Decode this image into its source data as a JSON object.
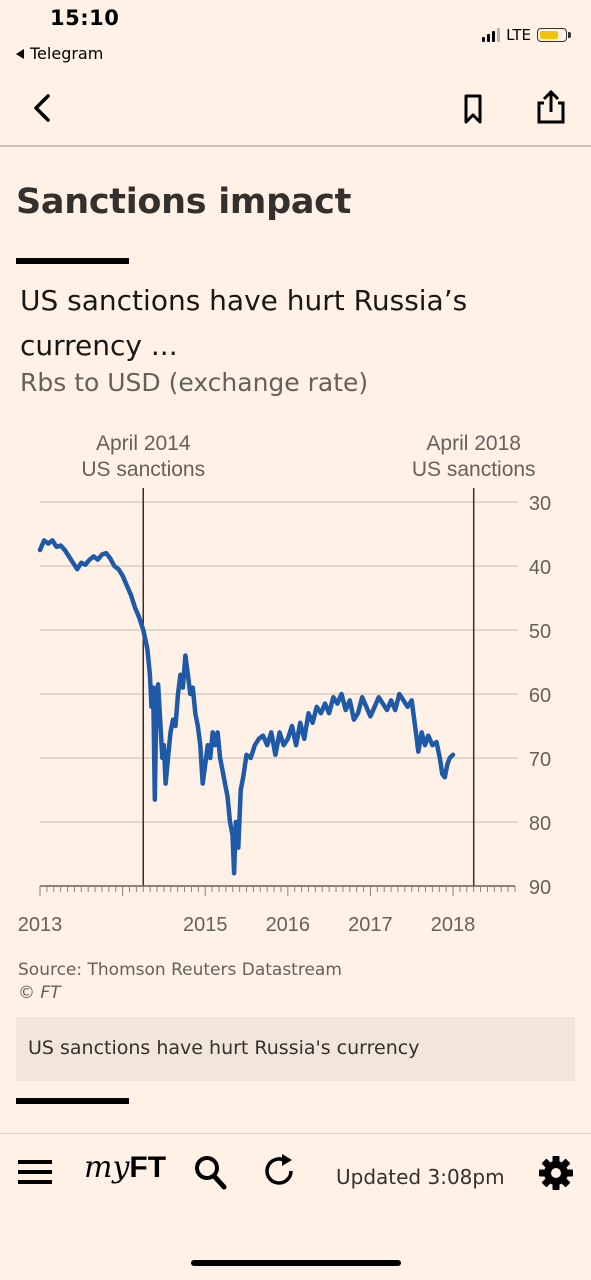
{
  "status_bar": {
    "time": "15:10",
    "back_app": "Telegram",
    "network": "LTE",
    "battery_color": "#f4c20d"
  },
  "nav": {
    "back_icon": "chevron-left-icon",
    "bookmark_icon": "bookmark-icon",
    "share_icon": "share-icon"
  },
  "article": {
    "heading": "Sanctions impact",
    "chart_title": "US sanctions have hurt Russia’s currency  ...",
    "chart_subtitle": "Rbs to USD (exchange rate)",
    "source": "Source: Thomson Reuters Datastream",
    "copyright": "© FT",
    "caption": "US sanctions have hurt Russia's currency"
  },
  "chart_data": {
    "type": "line",
    "title": "US sanctions have hurt Russia’s currency  ...",
    "subtitle": "Rbs to USD (exchange rate)",
    "y_axis": {
      "position": "right",
      "inverted": true,
      "range": [
        30,
        90
      ],
      "ticks": [
        30,
        40,
        50,
        60,
        70,
        80,
        90
      ]
    },
    "x_axis": {
      "range": [
        2013.0,
        2018.75
      ],
      "tick_labels": [
        "2013",
        "2015",
        "2016",
        "2017",
        "2018"
      ],
      "tick_values": [
        2013,
        2015,
        2016,
        2017,
        2018
      ]
    },
    "grid": true,
    "line_color": "#1e5aa8",
    "annotations": [
      {
        "x": 2014.25,
        "line1": "April 2014",
        "line2": "US sanctions"
      },
      {
        "x": 2018.25,
        "line1": "April 2018",
        "line2": "US sanctions"
      }
    ],
    "series": [
      {
        "name": "",
        "points": [
          [
            2013.0,
            37.5
          ],
          [
            2013.05,
            36.0
          ],
          [
            2013.1,
            36.5
          ],
          [
            2013.15,
            36.0
          ],
          [
            2013.2,
            37.0
          ],
          [
            2013.25,
            36.8
          ],
          [
            2013.3,
            37.5
          ],
          [
            2013.35,
            38.5
          ],
          [
            2013.4,
            39.5
          ],
          [
            2013.45,
            40.5
          ],
          [
            2013.5,
            39.5
          ],
          [
            2013.55,
            39.8
          ],
          [
            2013.6,
            39.0
          ],
          [
            2013.65,
            38.5
          ],
          [
            2013.7,
            39.0
          ],
          [
            2013.75,
            38.2
          ],
          [
            2013.8,
            38.0
          ],
          [
            2013.85,
            38.8
          ],
          [
            2013.9,
            40.0
          ],
          [
            2013.95,
            40.5
          ],
          [
            2014.0,
            41.5
          ],
          [
            2014.05,
            43.0
          ],
          [
            2014.1,
            44.5
          ],
          [
            2014.15,
            46.5
          ],
          [
            2014.2,
            48.0
          ],
          [
            2014.25,
            50.0
          ],
          [
            2014.3,
            53.0
          ],
          [
            2014.33,
            57.0
          ],
          [
            2014.35,
            62.0
          ],
          [
            2014.37,
            59.0
          ],
          [
            2014.39,
            76.5
          ],
          [
            2014.41,
            60.0
          ],
          [
            2014.43,
            58.5
          ],
          [
            2014.45,
            63.0
          ],
          [
            2014.48,
            70.0
          ],
          [
            2014.5,
            68.0
          ],
          [
            2014.52,
            74.0
          ],
          [
            2014.55,
            70.0
          ],
          [
            2014.58,
            66.0
          ],
          [
            2014.61,
            64.0
          ],
          [
            2014.64,
            65.0
          ],
          [
            2014.67,
            60.0
          ],
          [
            2014.7,
            57.0
          ],
          [
            2014.73,
            59.0
          ],
          [
            2014.76,
            54.0
          ],
          [
            2014.79,
            57.0
          ],
          [
            2014.82,
            60.0
          ],
          [
            2014.85,
            59.0
          ],
          [
            2014.88,
            63.0
          ],
          [
            2014.91,
            65.0
          ],
          [
            2014.94,
            68.0
          ],
          [
            2014.97,
            74.0
          ],
          [
            2015.0,
            71.0
          ],
          [
            2015.03,
            68.0
          ],
          [
            2015.06,
            70.0
          ],
          [
            2015.09,
            66.0
          ],
          [
            2015.12,
            68.0
          ],
          [
            2015.15,
            66.0
          ],
          [
            2015.18,
            70.0
          ],
          [
            2015.21,
            72.0
          ],
          [
            2015.24,
            74.0
          ],
          [
            2015.27,
            76.0
          ],
          [
            2015.3,
            80.0
          ],
          [
            2015.33,
            82.0
          ],
          [
            2015.35,
            88.0
          ],
          [
            2015.37,
            80.0
          ],
          [
            2015.4,
            84.0
          ],
          [
            2015.43,
            75.0
          ],
          [
            2015.46,
            73.0
          ],
          [
            2015.5,
            69.5
          ],
          [
            2015.55,
            70.0
          ],
          [
            2015.6,
            68.0
          ],
          [
            2015.65,
            67.0
          ],
          [
            2015.7,
            66.5
          ],
          [
            2015.75,
            68.0
          ],
          [
            2015.8,
            66.0
          ],
          [
            2015.85,
            69.5
          ],
          [
            2015.9,
            66.0
          ],
          [
            2015.95,
            68.0
          ],
          [
            2016.0,
            67.0
          ],
          [
            2016.05,
            65.0
          ],
          [
            2016.1,
            68.0
          ],
          [
            2016.15,
            64.5
          ],
          [
            2016.2,
            67.0
          ],
          [
            2016.25,
            63.0
          ],
          [
            2016.3,
            64.5
          ],
          [
            2016.35,
            62.0
          ],
          [
            2016.4,
            63.0
          ],
          [
            2016.45,
            61.5
          ],
          [
            2016.5,
            63.0
          ],
          [
            2016.55,
            60.5
          ],
          [
            2016.6,
            61.5
          ],
          [
            2016.65,
            60.0
          ],
          [
            2016.7,
            62.5
          ],
          [
            2016.75,
            61.0
          ],
          [
            2016.8,
            64.0
          ],
          [
            2016.85,
            63.0
          ],
          [
            2016.9,
            60.5
          ],
          [
            2016.95,
            62.0
          ],
          [
            2017.0,
            63.5
          ],
          [
            2017.05,
            62.0
          ],
          [
            2017.1,
            60.5
          ],
          [
            2017.15,
            61.5
          ],
          [
            2017.2,
            62.5
          ],
          [
            2017.25,
            61.0
          ],
          [
            2017.3,
            62.5
          ],
          [
            2017.35,
            60.0
          ],
          [
            2017.4,
            61.0
          ],
          [
            2017.45,
            62.0
          ],
          [
            2017.5,
            61.0
          ],
          [
            2017.55,
            66.0
          ],
          [
            2017.58,
            69.0
          ],
          [
            2017.62,
            66.0
          ],
          [
            2017.66,
            68.0
          ],
          [
            2017.7,
            66.5
          ],
          [
            2017.75,
            68.0
          ],
          [
            2017.8,
            67.5
          ],
          [
            2017.84,
            70.0
          ],
          [
            2017.87,
            72.5
          ],
          [
            2017.9,
            73.0
          ],
          [
            2017.93,
            71.0
          ],
          [
            2017.96,
            70.0
          ],
          [
            2018.0,
            69.5
          ]
        ]
      }
    ]
  },
  "toolbar": {
    "menu_icon": "hamburger-menu-icon",
    "myft_my": "my",
    "myft_ft": "FT",
    "search_icon": "search-icon",
    "refresh_icon": "refresh-icon",
    "updated": "Updated 3:08pm",
    "settings_icon": "gear-icon"
  }
}
